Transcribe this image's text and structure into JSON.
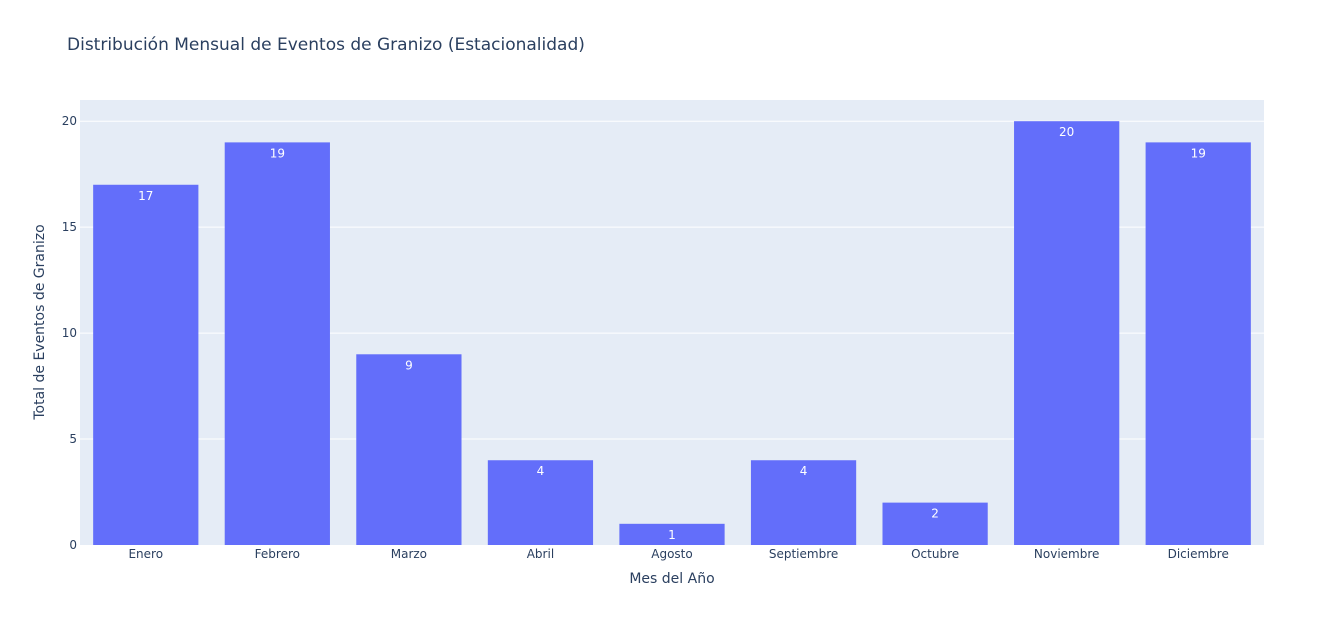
{
  "chart_data": {
    "type": "bar",
    "title": "Distribución Mensual de Eventos de Granizo (Estacionalidad)",
    "xlabel": "Mes del Año",
    "ylabel": "Total de Eventos de Granizo",
    "categories": [
      "Enero",
      "Febrero",
      "Marzo",
      "Abril",
      "Agosto",
      "Septiembre",
      "Octubre",
      "Noviembre",
      "Diciembre"
    ],
    "values": [
      17,
      19,
      9,
      4,
      1,
      4,
      2,
      20,
      19
    ],
    "ylim": [
      0,
      21
    ],
    "yticks": [
      0,
      5,
      10,
      15,
      20
    ],
    "grid": true,
    "legend": "none",
    "colors": {
      "bar": "#636efa",
      "plot_bg": "#e5ecf6",
      "grid": "#ffffff",
      "text": "#2a3f5f"
    }
  }
}
